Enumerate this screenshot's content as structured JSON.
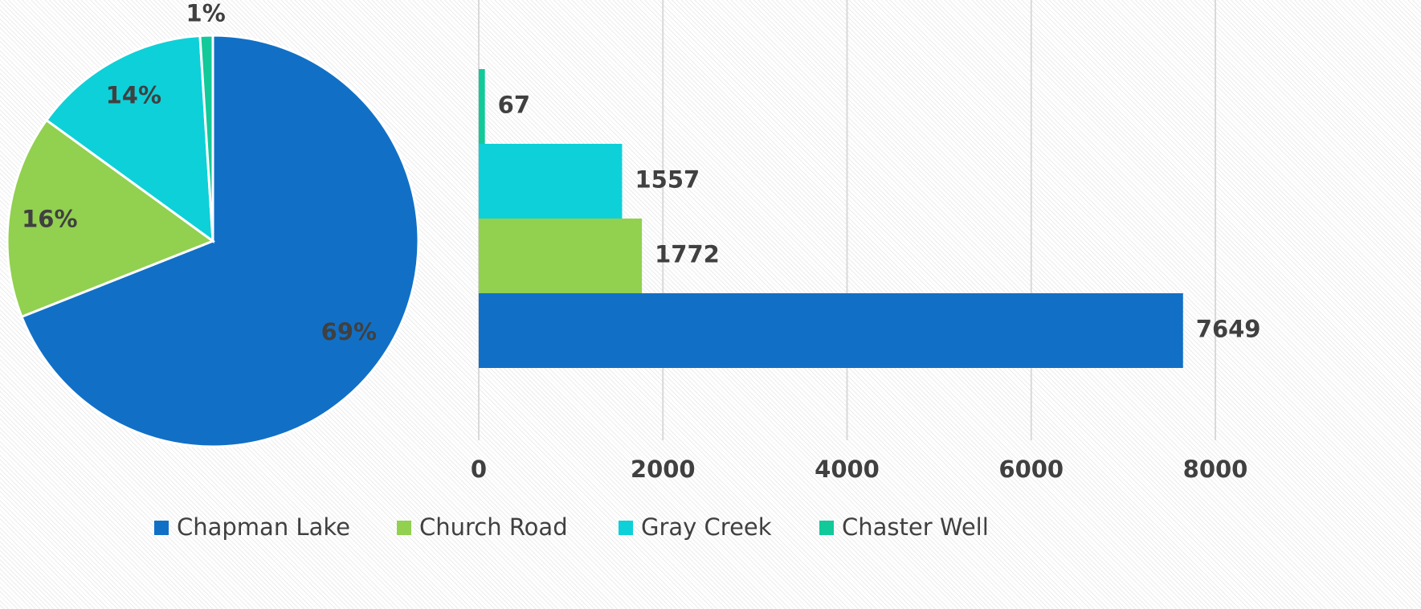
{
  "chart_data": [
    {
      "type": "pie",
      "categories": [
        "Chapman Lake",
        "Church Road",
        "Gray Creek",
        "Chaster Well"
      ],
      "values": [
        69,
        16,
        14,
        1
      ],
      "value_labels": [
        "69%",
        "16%",
        "14%",
        "1%"
      ],
      "colors": [
        "#1170c6",
        "#92d050",
        "#0ed0d8",
        "#12c99a"
      ],
      "legend": "bottom"
    },
    {
      "type": "bar",
      "orientation": "horizontal",
      "values": [
        7649,
        1772,
        1557,
        67
      ],
      "colors": [
        "#1170c6",
        "#92d050",
        "#0ed0d8",
        "#12c99a"
      ],
      "xlim": [
        0,
        8000
      ],
      "xticks": [
        0,
        2000,
        4000,
        6000,
        8000
      ],
      "grid": true
    }
  ]
}
